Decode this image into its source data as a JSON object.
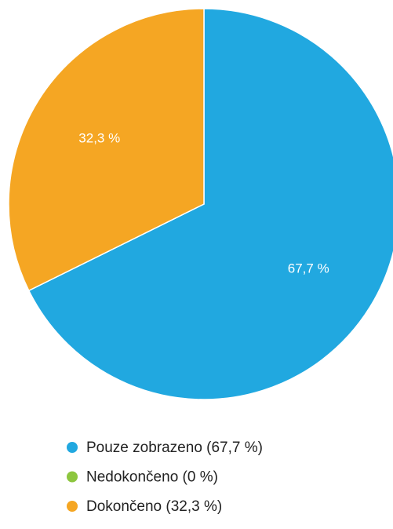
{
  "chart_data": {
    "type": "pie",
    "categories": [
      "Pouze zobrazeno (67,7 %)",
      "Nedokončeno (0 %)",
      "Dokončeno (32,3 %)"
    ],
    "values": [
      67.7,
      0,
      32.3
    ],
    "value_labels": [
      "67,7 %",
      null,
      "32,3 %"
    ],
    "colors": [
      "#21a8e0",
      "#8dc63f",
      "#f5a623"
    ]
  }
}
